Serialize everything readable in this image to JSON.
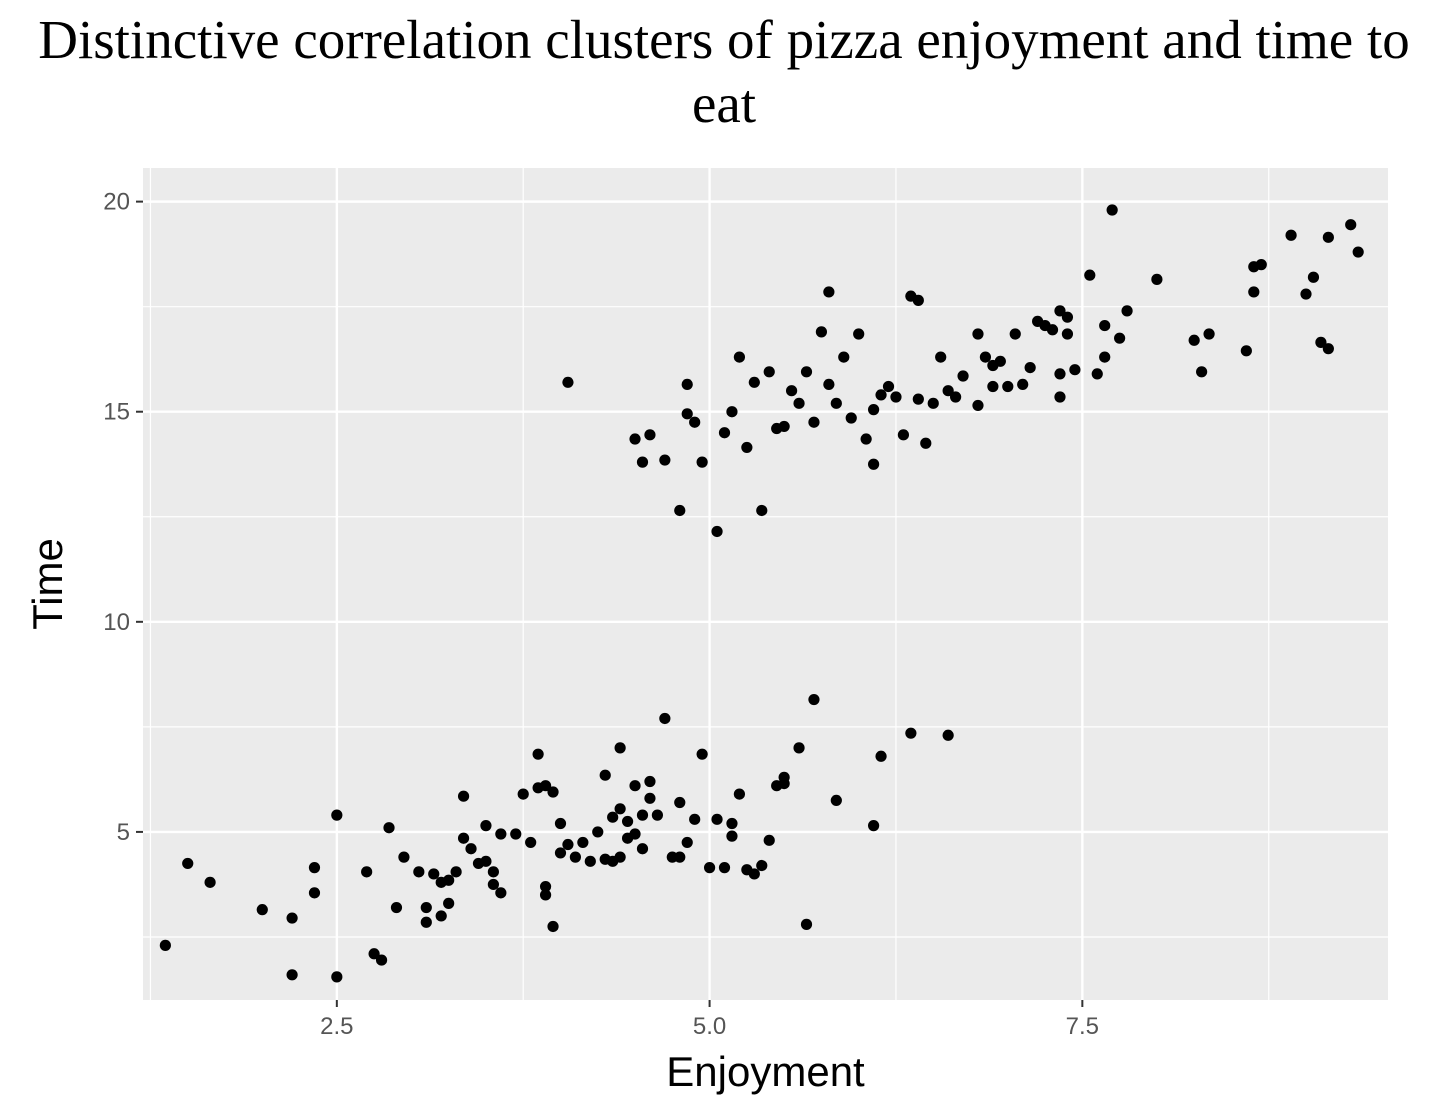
{
  "chart_data": {
    "type": "scatter",
    "title": "Distinctive correlation clusters of pizza enjoyment and time to eat",
    "xlabel": "Enjoyment",
    "ylabel": "Time",
    "xlim": [
      1.2,
      9.55
    ],
    "ylim": [
      1.0,
      20.8
    ],
    "xticks": [
      2.5,
      5.0,
      7.5
    ],
    "xtick_labels": [
      "2.5",
      "5.0",
      "7.5"
    ],
    "yticks": [
      5,
      10,
      15,
      20
    ],
    "ytick_labels": [
      "5",
      "10",
      "15",
      "20"
    ],
    "grid": true,
    "legend": "none",
    "colors": {
      "panel": "#EBEBEB",
      "grid": "#FFFFFF",
      "point": "#000000"
    },
    "series": [
      {
        "points": [
          [
            1.35,
            2.3
          ],
          [
            1.5,
            4.25
          ],
          [
            1.65,
            3.8
          ],
          [
            2.0,
            3.15
          ],
          [
            2.2,
            2.95
          ],
          [
            2.2,
            1.6
          ],
          [
            2.35,
            4.15
          ],
          [
            2.35,
            3.55
          ],
          [
            2.5,
            1.55
          ],
          [
            2.5,
            5.4
          ],
          [
            2.7,
            4.05
          ],
          [
            2.75,
            2.1
          ],
          [
            2.8,
            1.95
          ],
          [
            2.85,
            5.1
          ],
          [
            2.9,
            3.2
          ],
          [
            2.95,
            4.4
          ],
          [
            3.05,
            4.05
          ],
          [
            3.1,
            3.2
          ],
          [
            3.1,
            2.85
          ],
          [
            3.15,
            4.0
          ],
          [
            3.2,
            3.8
          ],
          [
            3.2,
            3.0
          ],
          [
            3.25,
            3.85
          ],
          [
            3.25,
            3.3
          ],
          [
            3.3,
            4.05
          ],
          [
            3.35,
            5.85
          ],
          [
            3.35,
            4.85
          ],
          [
            3.4,
            4.6
          ],
          [
            3.45,
            4.25
          ],
          [
            3.5,
            4.3
          ],
          [
            3.5,
            5.15
          ],
          [
            3.55,
            4.05
          ],
          [
            3.55,
            3.75
          ],
          [
            3.6,
            4.95
          ],
          [
            3.6,
            3.55
          ],
          [
            3.7,
            4.95
          ],
          [
            3.75,
            5.9
          ],
          [
            3.8,
            4.75
          ],
          [
            3.85,
            6.85
          ],
          [
            3.85,
            6.05
          ],
          [
            3.9,
            6.1
          ],
          [
            3.9,
            3.7
          ],
          [
            3.9,
            3.5
          ],
          [
            3.95,
            5.95
          ],
          [
            3.95,
            2.75
          ],
          [
            4.0,
            5.2
          ],
          [
            4.0,
            4.5
          ],
          [
            4.05,
            4.7
          ],
          [
            4.1,
            4.4
          ],
          [
            4.15,
            4.75
          ],
          [
            4.2,
            4.3
          ],
          [
            4.25,
            5.0
          ],
          [
            4.3,
            4.35
          ],
          [
            4.3,
            6.35
          ],
          [
            4.35,
            4.3
          ],
          [
            4.35,
            5.35
          ],
          [
            4.4,
            4.4
          ],
          [
            4.4,
            5.55
          ],
          [
            4.4,
            7.0
          ],
          [
            4.45,
            5.25
          ],
          [
            4.45,
            4.85
          ],
          [
            4.5,
            4.95
          ],
          [
            4.5,
            6.1
          ],
          [
            4.55,
            5.4
          ],
          [
            4.55,
            4.6
          ],
          [
            4.6,
            6.2
          ],
          [
            4.6,
            5.8
          ],
          [
            4.65,
            5.4
          ],
          [
            4.7,
            7.7
          ],
          [
            4.75,
            4.4
          ],
          [
            4.8,
            4.4
          ],
          [
            4.8,
            5.7
          ],
          [
            4.85,
            4.75
          ],
          [
            4.9,
            5.3
          ],
          [
            4.95,
            6.85
          ],
          [
            5.0,
            4.15
          ],
          [
            5.05,
            5.3
          ],
          [
            5.1,
            4.15
          ],
          [
            5.15,
            4.9
          ],
          [
            5.15,
            5.2
          ],
          [
            5.2,
            5.9
          ],
          [
            5.25,
            4.1
          ],
          [
            5.3,
            4.0
          ],
          [
            5.35,
            4.2
          ],
          [
            5.4,
            4.8
          ],
          [
            5.45,
            6.1
          ],
          [
            5.5,
            6.3
          ],
          [
            5.5,
            6.15
          ],
          [
            5.6,
            7.0
          ],
          [
            5.65,
            2.8
          ],
          [
            5.7,
            8.15
          ],
          [
            5.85,
            5.75
          ],
          [
            6.1,
            5.15
          ],
          [
            6.15,
            6.8
          ],
          [
            6.35,
            7.35
          ],
          [
            6.6,
            7.3
          ]
        ]
      },
      {
        "points": [
          [
            4.05,
            15.7
          ],
          [
            4.5,
            14.35
          ],
          [
            4.55,
            13.8
          ],
          [
            4.6,
            14.45
          ],
          [
            4.7,
            13.85
          ],
          [
            4.8,
            12.65
          ],
          [
            4.85,
            15.65
          ],
          [
            4.85,
            14.95
          ],
          [
            4.9,
            14.75
          ],
          [
            4.95,
            13.8
          ],
          [
            5.05,
            12.15
          ],
          [
            5.1,
            14.5
          ],
          [
            5.15,
            15.0
          ],
          [
            5.2,
            16.3
          ],
          [
            5.25,
            14.15
          ],
          [
            5.3,
            15.7
          ],
          [
            5.35,
            12.65
          ],
          [
            5.4,
            15.95
          ],
          [
            5.45,
            14.6
          ],
          [
            5.5,
            14.65
          ],
          [
            5.55,
            15.5
          ],
          [
            5.6,
            15.2
          ],
          [
            5.65,
            15.95
          ],
          [
            5.7,
            14.75
          ],
          [
            5.75,
            16.9
          ],
          [
            5.8,
            15.65
          ],
          [
            5.8,
            17.85
          ],
          [
            5.85,
            15.2
          ],
          [
            5.9,
            16.3
          ],
          [
            5.95,
            14.85
          ],
          [
            6.0,
            16.85
          ],
          [
            6.05,
            14.35
          ],
          [
            6.1,
            15.05
          ],
          [
            6.1,
            13.75
          ],
          [
            6.15,
            15.4
          ],
          [
            6.2,
            15.6
          ],
          [
            6.25,
            15.35
          ],
          [
            6.3,
            14.45
          ],
          [
            6.35,
            17.75
          ],
          [
            6.4,
            17.65
          ],
          [
            6.4,
            15.3
          ],
          [
            6.45,
            14.25
          ],
          [
            6.5,
            15.2
          ],
          [
            6.55,
            16.3
          ],
          [
            6.6,
            15.5
          ],
          [
            6.65,
            15.35
          ],
          [
            6.7,
            15.85
          ],
          [
            6.8,
            16.85
          ],
          [
            6.8,
            15.15
          ],
          [
            6.85,
            16.3
          ],
          [
            6.9,
            16.1
          ],
          [
            6.9,
            15.6
          ],
          [
            6.95,
            16.2
          ],
          [
            7.0,
            15.6
          ],
          [
            7.05,
            16.85
          ],
          [
            7.1,
            15.65
          ],
          [
            7.15,
            16.05
          ],
          [
            7.2,
            17.15
          ],
          [
            7.25,
            17.05
          ],
          [
            7.3,
            16.95
          ],
          [
            7.35,
            17.4
          ],
          [
            7.35,
            15.9
          ],
          [
            7.35,
            15.35
          ],
          [
            7.4,
            17.25
          ],
          [
            7.4,
            16.85
          ],
          [
            7.45,
            16.0
          ],
          [
            7.55,
            18.25
          ],
          [
            7.6,
            15.9
          ],
          [
            7.65,
            17.05
          ],
          [
            7.65,
            16.3
          ],
          [
            7.7,
            19.8
          ],
          [
            7.75,
            16.75
          ],
          [
            7.8,
            17.4
          ],
          [
            8.0,
            18.15
          ],
          [
            8.25,
            16.7
          ],
          [
            8.3,
            15.95
          ],
          [
            8.35,
            16.85
          ],
          [
            8.6,
            16.45
          ],
          [
            8.65,
            17.85
          ],
          [
            8.65,
            18.45
          ],
          [
            8.7,
            18.5
          ],
          [
            8.9,
            19.2
          ],
          [
            9.0,
            17.8
          ],
          [
            9.05,
            18.2
          ],
          [
            9.1,
            16.65
          ],
          [
            9.15,
            19.15
          ],
          [
            9.15,
            16.5
          ],
          [
            9.35,
            18.8
          ],
          [
            9.3,
            19.45
          ]
        ]
      }
    ]
  }
}
